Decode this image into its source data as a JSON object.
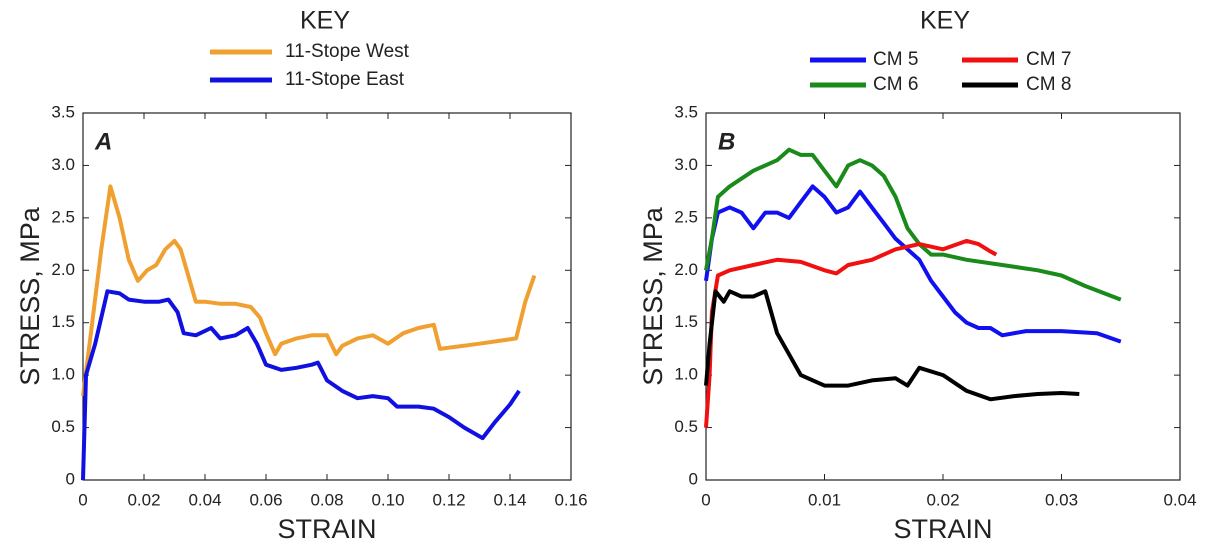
{
  "chart_data": [
    {
      "type": "line",
      "panel_label": "A",
      "legend_title": "KEY",
      "xlabel": "STRAIN",
      "ylabel": "STRESS, MPa",
      "xlim": [
        0,
        0.16
      ],
      "ylim": [
        0,
        3.5
      ],
      "xticks": [
        0,
        0.02,
        0.04,
        0.06,
        0.08,
        {
          "value": 0.1,
          "label": "0.10"
        },
        0.12,
        0.14,
        0.16
      ],
      "yticks": [
        0,
        0.5,
        {
          "value": 1,
          "label": "1.0"
        },
        1.5,
        {
          "value": 2,
          "label": "2.0"
        },
        2.5,
        {
          "value": 3,
          "label": "3.0"
        },
        3.5
      ],
      "series": [
        {
          "name": "11-Stope West",
          "color": "#f0a030",
          "x": [
            0,
            0.003,
            0.006,
            0.009,
            0.012,
            0.015,
            0.018,
            0.021,
            0.024,
            0.027,
            0.03,
            0.032,
            0.035,
            0.037,
            0.04,
            0.045,
            0.05,
            0.055,
            0.058,
            0.06,
            0.063,
            0.065,
            0.07,
            0.075,
            0.08,
            0.083,
            0.085,
            0.09,
            0.095,
            0.1,
            0.105,
            0.11,
            0.115,
            0.117,
            0.13,
            0.142,
            0.145,
            0.148
          ],
          "values": [
            0.8,
            1.5,
            2.2,
            2.8,
            2.5,
            2.1,
            1.9,
            2.0,
            2.05,
            2.2,
            2.28,
            2.2,
            1.9,
            1.7,
            1.7,
            1.68,
            1.68,
            1.65,
            1.55,
            1.4,
            1.2,
            1.3,
            1.35,
            1.38,
            1.38,
            1.2,
            1.28,
            1.35,
            1.38,
            1.3,
            1.4,
            1.45,
            1.48,
            1.25,
            1.3,
            1.35,
            1.7,
            1.95
          ]
        },
        {
          "name": "11-Stope East",
          "color": "#1010e0",
          "x": [
            0,
            0.001,
            0.004,
            0.008,
            0.012,
            0.015,
            0.02,
            0.025,
            0.028,
            0.031,
            0.033,
            0.037,
            0.042,
            0.045,
            0.05,
            0.054,
            0.057,
            0.06,
            0.065,
            0.07,
            0.075,
            0.077,
            0.08,
            0.085,
            0.09,
            0.095,
            0.1,
            0.103,
            0.11,
            0.115,
            0.12,
            0.125,
            0.131,
            0.135,
            0.14,
            0.143
          ],
          "values": [
            0,
            1.0,
            1.3,
            1.8,
            1.78,
            1.72,
            1.7,
            1.7,
            1.72,
            1.6,
            1.4,
            1.38,
            1.45,
            1.35,
            1.38,
            1.45,
            1.3,
            1.1,
            1.05,
            1.07,
            1.1,
            1.12,
            0.95,
            0.85,
            0.78,
            0.8,
            0.78,
            0.7,
            0.7,
            0.68,
            0.6,
            0.5,
            0.4,
            0.55,
            0.72,
            0.85
          ]
        }
      ]
    },
    {
      "type": "line",
      "panel_label": "B",
      "legend_title": "KEY",
      "xlabel": "STRAIN",
      "ylabel": "STRESS, MPa",
      "xlim": [
        0,
        0.04
      ],
      "ylim": [
        0,
        3.5
      ],
      "xticks": [
        0,
        0.01,
        0.02,
        0.03,
        0.04
      ],
      "yticks": [
        0,
        0.5,
        {
          "value": 1,
          "label": "1.0"
        },
        1.5,
        {
          "value": 2,
          "label": "2.0"
        },
        2.5,
        {
          "value": 3,
          "label": "3.0"
        },
        3.5
      ],
      "series": [
        {
          "name": "CM 5",
          "color": "#1010f0",
          "x": [
            0,
            0.0005,
            0.001,
            0.002,
            0.003,
            0.004,
            0.005,
            0.006,
            0.007,
            0.008,
            0.009,
            0.01,
            0.011,
            0.012,
            0.013,
            0.014,
            0.015,
            0.016,
            0.017,
            0.018,
            0.019,
            0.02,
            0.021,
            0.022,
            0.023,
            0.024,
            0.025,
            0.027,
            0.03,
            0.033,
            0.035
          ],
          "values": [
            1.9,
            2.3,
            2.55,
            2.6,
            2.55,
            2.4,
            2.55,
            2.55,
            2.5,
            2.65,
            2.8,
            2.7,
            2.55,
            2.6,
            2.75,
            2.6,
            2.45,
            2.3,
            2.2,
            2.1,
            1.9,
            1.75,
            1.6,
            1.5,
            1.45,
            1.45,
            1.38,
            1.42,
            1.42,
            1.4,
            1.32
          ]
        },
        {
          "name": "CM 6",
          "color": "#1a8a1a",
          "x": [
            0,
            0.0005,
            0.001,
            0.002,
            0.004,
            0.006,
            0.007,
            0.008,
            0.009,
            0.01,
            0.011,
            0.012,
            0.013,
            0.014,
            0.015,
            0.016,
            0.017,
            0.018,
            0.019,
            0.02,
            0.022,
            0.025,
            0.028,
            0.03,
            0.032,
            0.035
          ],
          "values": [
            2.0,
            2.3,
            2.7,
            2.8,
            2.95,
            3.05,
            3.15,
            3.1,
            3.1,
            2.95,
            2.8,
            3.0,
            3.05,
            3.0,
            2.9,
            2.7,
            2.4,
            2.25,
            2.15,
            2.15,
            2.1,
            2.05,
            2.0,
            1.95,
            1.85,
            1.72
          ]
        },
        {
          "name": "CM 7",
          "color": "#f01010",
          "x": [
            0,
            0.0003,
            0.0005,
            0.001,
            0.002,
            0.004,
            0.006,
            0.008,
            0.01,
            0.011,
            0.012,
            0.014,
            0.016,
            0.018,
            0.02,
            0.022,
            0.023,
            0.024,
            0.0245
          ],
          "values": [
            0.5,
            1.0,
            1.6,
            1.95,
            2.0,
            2.05,
            2.1,
            2.08,
            2.0,
            1.97,
            2.05,
            2.1,
            2.2,
            2.25,
            2.2,
            2.28,
            2.25,
            2.18,
            2.15
          ]
        },
        {
          "name": "CM 8",
          "color": "#000000",
          "x": [
            0,
            0.0003,
            0.0008,
            0.0015,
            0.002,
            0.003,
            0.004,
            0.005,
            0.006,
            0.007,
            0.008,
            0.01,
            0.012,
            0.014,
            0.016,
            0.017,
            0.018,
            0.02,
            0.022,
            0.024,
            0.026,
            0.028,
            0.03,
            0.0315
          ],
          "values": [
            0.9,
            1.3,
            1.8,
            1.7,
            1.8,
            1.75,
            1.75,
            1.8,
            1.4,
            1.2,
            1.0,
            0.9,
            0.9,
            0.95,
            0.97,
            0.9,
            1.07,
            1.0,
            0.85,
            0.77,
            0.8,
            0.82,
            0.83,
            0.82
          ]
        }
      ]
    }
  ]
}
